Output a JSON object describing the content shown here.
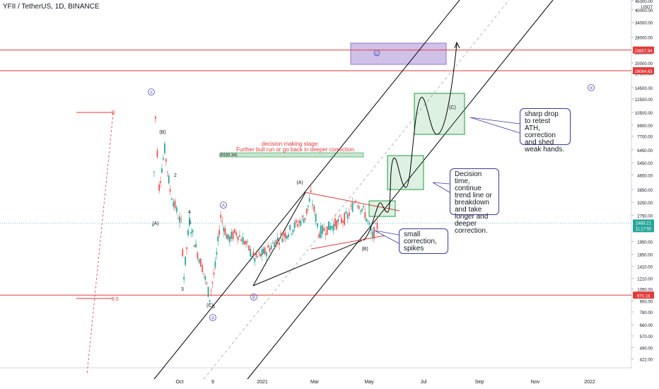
{
  "header": {
    "symbol_line": "YFII / TetherUS, 1D, BINANCE",
    "currency": "USDT"
  },
  "colors": {
    "candle_up": "#26a69a",
    "candle_down": "#ef5350",
    "channel": "#000000",
    "midline": "#b2b5be",
    "resistance": "#e23a3a",
    "callout_border": "#3a3ba0",
    "green_box": "#1f9d3f",
    "purple_box": "#9575cd"
  },
  "chart_data": {
    "type": "candlestick",
    "title": "YFII / TetherUS, 1D, BINANCE",
    "y_scale": "log",
    "ylim": [
      380,
      45000
    ],
    "x_ticks": [
      "Oct",
      "9",
      "2021",
      "Mar",
      "May",
      "Jul",
      "Sep",
      "Nov",
      "2022"
    ],
    "y_ticks": [
      "45000.00",
      "40000.00",
      "34000.00",
      "28000.00",
      "23000.00",
      "20000.00",
      "17500.00",
      "14500.00",
      "12500.00",
      "10500.00",
      "8900.00",
      "7700.00",
      "6450.00",
      "5450.00",
      "4650.00",
      "3850.00",
      "3250.00",
      "2750.00",
      "1950.00",
      "1650.00",
      "1410.00",
      "1210.00",
      "1050.00",
      "900.00",
      "780.00",
      "660.00",
      "570.00",
      "490.00",
      "422.00"
    ],
    "price_levels": [
      {
        "label": "23657.94",
        "value": 23657.94
      },
      {
        "label": "18064.63",
        "value": 18064.63
      },
      {
        "label": "970.18",
        "value": 970.18
      }
    ],
    "last_price": {
      "label": "2483.21",
      "time": "11:17:50",
      "value": 2483.21
    },
    "series": [
      {
        "name": "price",
        "points": [
          {
            "date": "2020-09-01",
            "close": 2400
          },
          {
            "date": "2020-09-04",
            "close": 9800
          },
          {
            "date": "2020-09-08",
            "close": 4000
          },
          {
            "date": "2020-09-14",
            "close": 6500
          },
          {
            "date": "2020-09-20",
            "close": 3800
          },
          {
            "date": "2020-09-27",
            "close": 2900
          },
          {
            "date": "2020-10-02",
            "close": 2450
          },
          {
            "date": "2020-10-05",
            "close": 1250
          },
          {
            "date": "2020-10-11",
            "close": 2550
          },
          {
            "date": "2020-10-18",
            "close": 1800
          },
          {
            "date": "2020-10-25",
            "close": 1400
          },
          {
            "date": "2020-11-02",
            "close": 940
          },
          {
            "date": "2020-11-08",
            "close": 1400
          },
          {
            "date": "2020-11-14",
            "close": 2700
          },
          {
            "date": "2020-11-22",
            "close": 2000
          },
          {
            "date": "2020-12-01",
            "close": 2200
          },
          {
            "date": "2020-12-10",
            "close": 1950
          },
          {
            "date": "2020-12-21",
            "close": 1550
          },
          {
            "date": "2021-01-01",
            "close": 1700
          },
          {
            "date": "2021-01-15",
            "close": 2000
          },
          {
            "date": "2021-01-30",
            "close": 2300
          },
          {
            "date": "2021-02-14",
            "close": 2700
          },
          {
            "date": "2021-02-20",
            "close": 3550
          },
          {
            "date": "2021-03-01",
            "close": 2200
          },
          {
            "date": "2021-03-15",
            "close": 2400
          },
          {
            "date": "2021-04-01",
            "close": 2700
          },
          {
            "date": "2021-04-10",
            "close": 3400
          },
          {
            "date": "2021-04-20",
            "close": 2800
          },
          {
            "date": "2021-04-28",
            "close": 2100
          },
          {
            "date": "2021-05-05",
            "close": 2483
          }
        ]
      }
    ],
    "channel_lines": [
      "upper",
      "mid",
      "lower"
    ],
    "wave_labels": [
      "1",
      "2",
      "4",
      "(A)",
      "(B)",
      "3",
      "(C)",
      "5",
      "A",
      "B",
      "C",
      "(A)",
      "(B)",
      "(C)",
      "0",
      "0.5",
      "①",
      "②",
      "④"
    ],
    "price_box": "(5939.34)",
    "annotations": [
      "decision making stage.",
      "Further bull run or go back in deeper correction."
    ],
    "callouts": [
      "sharp drop to retest ATH, correction and shed weak hands.",
      "Decision time, continue trend line or breakdown and take longer and deeper correction.",
      "small correction, spikes"
    ]
  }
}
